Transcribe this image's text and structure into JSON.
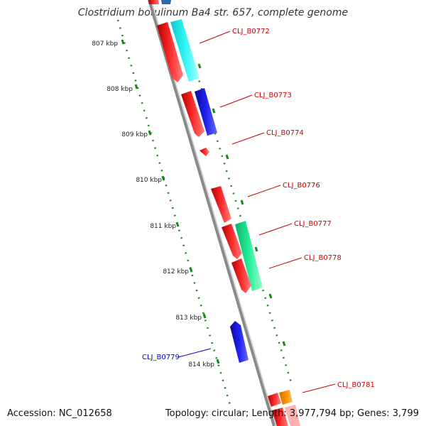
{
  "title": "Clostridium botulinum Ba4 str. 657, complete genome",
  "accession": "Accession: NC_012658",
  "topology": "Topology: circular; Length: 3,977,794 bp; Genes: 3,799",
  "colors": {
    "backbone": "#8c8c8c",
    "ticks": "#138a13",
    "red": "#ff1a1a",
    "cyan": "#1ff0f0",
    "blue": "#1a1aee",
    "green": "#20e88c",
    "orange": "#ff8c00",
    "label_red": "#cc0000",
    "label_blue": "#0000cc"
  },
  "ruler": [
    "807 kbp",
    "808 kbp",
    "809 kbp",
    "810 kbp",
    "811 kbp",
    "812 kbp",
    "813 kbp",
    "814 kbp"
  ],
  "gene_labels": [
    {
      "text": "CLJ_B0772",
      "color": "red"
    },
    {
      "text": "CLJ_B0773",
      "color": "red"
    },
    {
      "text": "CLJ_B0774",
      "color": "red"
    },
    {
      "text": "CLJ_B0776",
      "color": "red"
    },
    {
      "text": "CLJ_B0777",
      "color": "red"
    },
    {
      "text": "CLJ_B0778",
      "color": "red"
    },
    {
      "text": "CLJ_B0779",
      "color": "blue"
    },
    {
      "text": "CLJ_B0781",
      "color": "red"
    }
  ]
}
